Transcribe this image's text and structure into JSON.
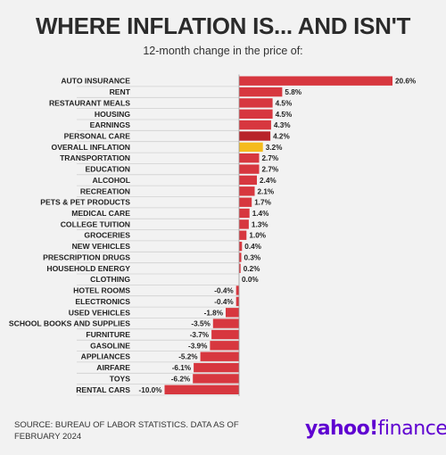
{
  "title": "WHERE INFLATION IS... AND ISN'T",
  "subtitle": "12-month change in the price of:",
  "source": "SOURCE: BUREAU OF LABOR STATISTICS. DATA AS OF FEBRUARY 2024",
  "logo": {
    "part1": "yahoo",
    "mark": "!",
    "part2": "finance"
  },
  "chart_data": {
    "type": "bar",
    "orientation": "horizontal",
    "title": "WHERE INFLATION IS... AND ISN'T",
    "subtitle": "12-month change in the price of:",
    "unit": "%",
    "categories": [
      "AUTO INSURANCE",
      "RENT",
      "RESTAURANT MEALS",
      "HOUSING",
      "EARNINGS",
      "PERSONAL CARE",
      "OVERALL INFLATION",
      "TRANSPORTATION",
      "EDUCATION",
      "ALCOHOL",
      "RECREATION",
      "PETS & PET PRODUCTS",
      "MEDICAL CARE",
      "COLLEGE TUITION",
      "GROCERIES",
      "NEW VEHICLES",
      "PRESCRIPTION DRUGS",
      "HOUSEHOLD ENERGY",
      "CLOTHING",
      "HOTEL ROOMS",
      "ELECTRONICS",
      "USED VEHICLES",
      "SCHOOL BOOKS AND SUPPLIES",
      "FURNITURE",
      "GASOLINE",
      "APPLIANCES",
      "AIRFARE",
      "TOYS",
      "RENTAL CARS"
    ],
    "values": [
      20.6,
      5.8,
      4.5,
      4.5,
      4.3,
      4.2,
      3.2,
      2.7,
      2.7,
      2.4,
      2.1,
      1.7,
      1.4,
      1.3,
      1.0,
      0.4,
      0.3,
      0.2,
      0.0,
      -0.4,
      -0.4,
      -1.8,
      -3.5,
      -3.7,
      -3.9,
      -5.2,
      -6.1,
      -6.2,
      -10.0
    ],
    "value_labels": [
      "20.6%",
      "5.8%",
      "4.5%",
      "4.5%",
      "4.3%",
      "4.2%",
      "3.2%",
      "2.7%",
      "2.7%",
      "2.4%",
      "2.1%",
      "1.7%",
      "1.4%",
      "1.3%",
      "1.0%",
      "0.4%",
      "0.3%",
      "0.2%",
      "0.0%",
      "-0.4%",
      "-0.4%",
      "-1.8%",
      "-3.5%",
      "-3.7%",
      "-3.9%",
      "-5.2%",
      "-6.1%",
      "-6.2%",
      "-10.0%"
    ],
    "xlim": [
      -10.0,
      20.6
    ],
    "colors": {
      "default": "#d7373f",
      "highlight": "#f5bb1c",
      "darker": "#b8232a"
    },
    "highlight_category": "OVERALL INFLATION",
    "darker_category": "PERSONAL CARE",
    "grid": false,
    "legend": "none"
  }
}
